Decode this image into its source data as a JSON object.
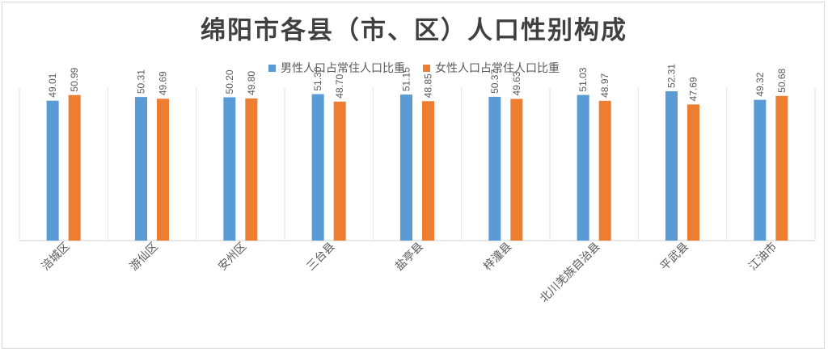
{
  "chart_data": {
    "type": "bar",
    "title": "绵阳市各县（市、区）人口性别构成",
    "categories": [
      "涪城区",
      "游仙区",
      "安州区",
      "三台县",
      "盐亭县",
      "梓潼县",
      "北川羌族自治县",
      "平武县",
      "江油市"
    ],
    "series": [
      {
        "name": "男性人口占常住人口比重",
        "color": "#5b9bd5",
        "values": [
          49.01,
          50.31,
          50.2,
          51.3,
          51.15,
          50.37,
          51.03,
          52.31,
          49.32
        ],
        "labels": [
          "49.01",
          "50.31",
          "50.20",
          "51.30",
          "51.15",
          "50.37",
          "51.03",
          "52.31",
          "49.32"
        ]
      },
      {
        "name": "女性人口占常住人口比重",
        "color": "#ed7d31",
        "values": [
          50.99,
          49.69,
          49.8,
          48.7,
          48.85,
          49.63,
          48.97,
          47.69,
          50.68
        ],
        "labels": [
          "50.99",
          "49.69",
          "49.80",
          "48.70",
          "48.85",
          "49.63",
          "48.97",
          "47.69",
          "50.68"
        ]
      }
    ],
    "ylim": [
      0,
      56
    ],
    "legend_position": "top",
    "grid": "vertical category separators"
  }
}
